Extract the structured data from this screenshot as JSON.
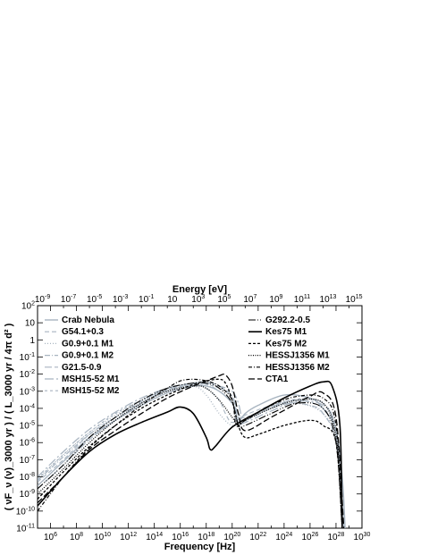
{
  "chart_data": {
    "type": "line",
    "xlabel": "Frequency [Hz]",
    "x2label": "Energy [eV]",
    "ylabel": "( νF_ν (ν)_3000 yr ) / ( L_3000 yr / 4π d² )",
    "x_scale": "log",
    "y_scale": "log",
    "xlim": [
      100000.0,
      1e+30
    ],
    "ylim": [
      1e-11,
      100
    ],
    "x_ticks": [
      "10^6",
      "10^8",
      "10^10",
      "10^12",
      "10^14",
      "10^16",
      "10^18",
      "10^20",
      "10^22",
      "10^24",
      "10^26",
      "10^28",
      "10^30"
    ],
    "x_tick_values": [
      1000000.0,
      100000000.0,
      10000000000.0,
      1000000000000.0,
      100000000000000.0,
      1e+16,
      1e+18,
      1e+20,
      1e+22,
      1e+24,
      1e+26,
      1e+28,
      1e+30
    ],
    "x2_ticks": [
      "10^-9",
      "10^-7",
      "10^-5",
      "10^-3",
      "10^-1",
      "10",
      "10^3",
      "10^5",
      "10^7",
      "10^9",
      "10^11",
      "10^13",
      "10^15"
    ],
    "x2_tick_values_ev": [
      1e-09,
      1e-07,
      1e-05,
      0.001,
      0.1,
      10,
      1000.0,
      100000.0,
      10000000.0,
      1000000000.0,
      100000000000.0,
      10000000000000.0,
      1000000000000000.0
    ],
    "y_ticks": [
      "10^-11",
      "10^-10",
      "10^-9",
      "10^-8",
      "10^-7",
      "10^-6",
      "10^-5",
      "10^-4",
      "10^-3",
      "10^-2",
      "10^-1",
      "1",
      "10",
      "10^2"
    ],
    "y_tick_values": [
      1e-11,
      1e-10,
      1e-09,
      1e-08,
      1e-07,
      1e-06,
      1e-05,
      0.0001,
      0.001,
      0.01,
      0.1,
      1,
      10,
      100
    ],
    "grid": false,
    "series": [
      {
        "name": "Crab Nebula",
        "color": "#a8b4c0",
        "dash": "solid",
        "width": 1.4,
        "points": [
          [
            100000.0,
            3e-09
          ],
          [
            10000000.0,
            8e-08
          ],
          [
            1000000000.0,
            2e-06
          ],
          [
            100000000000.0,
            2e-05
          ],
          [
            10000000000000.0,
            0.00015
          ],
          [
            1000000000000000.0,
            0.0008
          ],
          [
            1e+17,
            0.002
          ],
          [
            1e+18,
            0.002
          ],
          [
            1e+19,
            0.001
          ],
          [
            1e+20,
            0.0002
          ],
          [
            2e+20,
            5e-05
          ],
          [
            3e+20,
            1.5e-05
          ],
          [
            1e+21,
            5e-05
          ],
          [
            1e+22,
            0.00015
          ],
          [
            1e+24,
            0.0006
          ],
          [
            1e+26,
            0.0004
          ],
          [
            1e+27,
            0.0001
          ],
          [
            1e+28,
            5e-06
          ],
          [
            3e+28,
            1e-08
          ],
          [
            5e+28,
            1e-11
          ]
        ]
      },
      {
        "name": "G54.1+0.3",
        "color": "#a8b4c0",
        "dash": "5,3",
        "width": 1.1,
        "points": [
          [
            100000.0,
            5e-09
          ],
          [
            10000000.0,
            1e-07
          ],
          [
            1000000000.0,
            3e-06
          ],
          [
            100000000000.0,
            3e-05
          ],
          [
            10000000000000.0,
            0.0002
          ],
          [
            1000000000000000.0,
            0.001
          ],
          [
            1e+17,
            0.0025
          ],
          [
            1e+18,
            0.0015
          ],
          [
            1e+19,
            0.0003
          ],
          [
            3e+19,
            5e-05
          ],
          [
            1e+20,
            1.5e-05
          ],
          [
            1e+21,
            4e-05
          ],
          [
            1e+23,
            0.00015
          ],
          [
            1e+25,
            0.0003
          ],
          [
            1e+27,
            0.0001
          ],
          [
            1e+28,
            3e-06
          ],
          [
            3e+28,
            1e-11
          ]
        ]
      },
      {
        "name": "G0.9+0.1 M1",
        "color": "#a8b4c0",
        "dash": "1,2",
        "width": 1.3,
        "points": [
          [
            100000.0,
            8e-09
          ],
          [
            10000000.0,
            2e-07
          ],
          [
            1000000000.0,
            4e-06
          ],
          [
            100000000000.0,
            4e-05
          ],
          [
            10000000000000.0,
            0.0003
          ],
          [
            1000000000000000.0,
            0.0012
          ],
          [
            1e+17,
            0.002
          ],
          [
            1e+18,
            0.0006
          ],
          [
            1e+19,
            5e-05
          ],
          [
            1e+20,
            1e-05
          ],
          [
            1e+21,
            2e-05
          ],
          [
            1e+23,
            0.0001
          ],
          [
            1e+25,
            0.0002
          ],
          [
            1e+27,
            5e-05
          ],
          [
            1e+28,
            1e-06
          ],
          [
            4e+28,
            1e-11
          ]
        ]
      },
      {
        "name": "G0.9+0.1 M2",
        "color": "#a8b4c0",
        "dash": "6,2,1,2",
        "width": 1.2,
        "points": [
          [
            100000.0,
            6e-09
          ],
          [
            10000000.0,
            1.5e-07
          ],
          [
            1000000000.0,
            3e-06
          ],
          [
            100000000000.0,
            3e-05
          ],
          [
            10000000000000.0,
            0.00025
          ],
          [
            1000000000000000.0,
            0.0015
          ],
          [
            1e+17,
            0.003
          ],
          [
            1e+18,
            0.0025
          ],
          [
            1e+19,
            0.001
          ],
          [
            1e+20,
            0.0002
          ],
          [
            2e+20,
            2e-05
          ],
          [
            5e+20,
            1.2e-05
          ],
          [
            1e+22,
            6e-05
          ],
          [
            1e+24,
            0.0002
          ],
          [
            1e+26,
            0.00015
          ],
          [
            1e+27,
            5e-05
          ],
          [
            1e+28,
            1e-06
          ],
          [
            4e+28,
            1e-11
          ]
        ]
      },
      {
        "name": "G21.5-0.9",
        "color": "#a8b4c0",
        "dash": "8,3",
        "width": 1.2,
        "points": [
          [
            100000.0,
            2e-09
          ],
          [
            10000000.0,
            5e-08
          ],
          [
            1000000000.0,
            1.5e-06
          ],
          [
            100000000000.0,
            2e-05
          ],
          [
            10000000000000.0,
            0.0002
          ],
          [
            1000000000000000.0,
            0.0012
          ],
          [
            1e+17,
            0.003
          ],
          [
            1e+18,
            0.0035
          ],
          [
            1e+19,
            0.002
          ],
          [
            1e+20,
            0.0005
          ],
          [
            3e+20,
            3e-05
          ],
          [
            1e+21,
            2e-05
          ],
          [
            1e+23,
            0.0001
          ],
          [
            1e+25,
            0.0003
          ],
          [
            1e+27,
            0.0002
          ],
          [
            1e+28,
            3e-06
          ],
          [
            4e+28,
            1e-11
          ]
        ]
      },
      {
        "name": "MSH15-52 M1",
        "color": "#a8b4c0",
        "dash": "10,3,2,3",
        "width": 1.2,
        "points": [
          [
            100000.0,
            1e-08
          ],
          [
            10000000.0,
            3e-07
          ],
          [
            1000000000.0,
            6e-06
          ],
          [
            100000000000.0,
            6e-05
          ],
          [
            10000000000000.0,
            0.0004
          ],
          [
            1000000000000000.0,
            0.0015
          ],
          [
            1e+17,
            0.003
          ],
          [
            1e+18,
            0.003
          ],
          [
            1e+19,
            0.002
          ],
          [
            1e+20,
            0.001
          ],
          [
            3e+20,
            0.0002
          ],
          [
            6e+20,
            2e-05
          ],
          [
            1e+21,
            1.5e-05
          ],
          [
            1e+23,
            7e-05
          ],
          [
            1e+25,
            0.00025
          ],
          [
            1e+27,
            0.00015
          ],
          [
            1e+28,
            5e-06
          ],
          [
            4e+28,
            1e-11
          ]
        ]
      },
      {
        "name": "MSH15-52 M2",
        "color": "#a8b4c0",
        "dash": "3,3",
        "width": 1.2,
        "points": [
          [
            100000.0,
            7e-09
          ],
          [
            10000000.0,
            2e-07
          ],
          [
            1000000000.0,
            4e-06
          ],
          [
            100000000000.0,
            5e-05
          ],
          [
            10000000000000.0,
            0.0003
          ],
          [
            1000000000000000.0,
            0.0012
          ],
          [
            1e+17,
            0.0025
          ],
          [
            1e+18,
            0.0025
          ],
          [
            1e+19,
            0.0015
          ],
          [
            1e+20,
            0.0005
          ],
          [
            3e+20,
            5e-05
          ],
          [
            1e+21,
            3e-05
          ],
          [
            1e+23,
            0.00012
          ],
          [
            1e+25,
            0.00035
          ],
          [
            1e+27,
            0.0002
          ],
          [
            1e+28,
            4e-06
          ],
          [
            4e+28,
            1e-11
          ]
        ]
      },
      {
        "name": "G292.2-0.5",
        "color": "#000000",
        "dash": "8,2,1,2,1,2",
        "width": 1.1,
        "points": [
          [
            100000.0,
            2e-09
          ],
          [
            10000000.0,
            5e-08
          ],
          [
            1000000000.0,
            2e-06
          ],
          [
            100000000000.0,
            3e-05
          ],
          [
            10000000000000.0,
            0.0003
          ],
          [
            1000000000000000.0,
            0.0015
          ],
          [
            1e+17,
            0.003
          ],
          [
            1e+18,
            0.003
          ],
          [
            1e+19,
            0.0015
          ],
          [
            1e+20,
            0.0002
          ],
          [
            3e+20,
            1e-05
          ],
          [
            1e+21,
            1e-05
          ],
          [
            1e+23,
            5e-05
          ],
          [
            1e+25,
            0.0002
          ],
          [
            1e+27,
            0.0001
          ],
          [
            1e+28,
            1e-06
          ],
          [
            3e+28,
            1e-11
          ]
        ]
      },
      {
        "name": "Kes75 M1",
        "color": "#000000",
        "dash": "solid",
        "width": 1.6,
        "points": [
          [
            100000.0,
            2e-10
          ],
          [
            10000000.0,
            1e-08
          ],
          [
            1000000000.0,
            3e-07
          ],
          [
            100000000000.0,
            3e-06
          ],
          [
            10000000000000.0,
            1.5e-05
          ],
          [
            1000000000000000.0,
            6e-05
          ],
          [
            1e+16,
            0.00012
          ],
          [
            1e+17,
            5e-05
          ],
          [
            1e+18,
            2e-06
          ],
          [
            2e+18,
            4e-07
          ],
          [
            5e+18,
            6e-07
          ],
          [
            1e+20,
            8e-06
          ],
          [
            1e+22,
            6e-05
          ],
          [
            1e+24,
            0.0004
          ],
          [
            1e+26,
            0.002
          ],
          [
            1e+27,
            0.0035
          ],
          [
            5e+27,
            0.002
          ],
          [
            2e+28,
            1e-05
          ],
          [
            3e+28,
            1e-11
          ]
        ]
      },
      {
        "name": "Kes75 M2",
        "color": "#000000",
        "dash": "3,2",
        "width": 1.3,
        "points": [
          [
            100000.0,
            5e-10
          ],
          [
            10000000.0,
            2e-08
          ],
          [
            1000000000.0,
            6e-07
          ],
          [
            100000000000.0,
            1e-05
          ],
          [
            10000000000000.0,
            0.0001
          ],
          [
            1000000000000000.0,
            0.0006
          ],
          [
            1e+17,
            0.0025
          ],
          [
            1e+18,
            0.004
          ],
          [
            1e+19,
            0.005
          ],
          [
            3e+19,
            0.003
          ],
          [
            1e+20,
            0.0003
          ],
          [
            3e+20,
            1e-05
          ],
          [
            1e+21,
            2e-06
          ],
          [
            1e+22,
            3e-06
          ],
          [
            1e+24,
            1e-05
          ],
          [
            1e+26,
            2e-05
          ],
          [
            1e+27,
            1e-05
          ],
          [
            1e+28,
            1e-06
          ],
          [
            3e+28,
            1e-11
          ]
        ]
      },
      {
        "name": "HESSJ1356 M1",
        "color": "#000000",
        "dash": "1,1.5",
        "width": 1.3,
        "points": [
          [
            100000.0,
            1e-09
          ],
          [
            10000000.0,
            3e-08
          ],
          [
            1000000000.0,
            1e-06
          ],
          [
            100000000000.0,
            2e-05
          ],
          [
            10000000000000.0,
            0.0002
          ],
          [
            1000000000000000.0,
            0.001
          ],
          [
            1e+17,
            0.002
          ],
          [
            1e+18,
            0.0015
          ],
          [
            1e+19,
            0.0003
          ],
          [
            1e+20,
            3e-05
          ],
          [
            3e+20,
            1e-05
          ],
          [
            1e+21,
            2e-05
          ],
          [
            1e+23,
            0.0001
          ],
          [
            1e+25,
            0.0003
          ],
          [
            1e+27,
            0.0002
          ],
          [
            1e+28,
            2e-06
          ],
          [
            3e+28,
            1e-11
          ]
        ]
      },
      {
        "name": "HESSJ1356 M2",
        "color": "#000000",
        "dash": "4,2,1,2",
        "width": 1.2,
        "points": [
          [
            100000.0,
            1e-10
          ],
          [
            10000000.0,
            1e-08
          ],
          [
            1000000000.0,
            5e-07
          ],
          [
            100000000000.0,
            1e-05
          ],
          [
            10000000000000.0,
            0.00015
          ],
          [
            1000000000000000.0,
            0.0015
          ],
          [
            1e+16,
            0.004
          ],
          [
            1e+17,
            0.005
          ],
          [
            1e+18,
            0.004
          ],
          [
            1e+19,
            0.002
          ],
          [
            1e+20,
            0.0003
          ],
          [
            2e+20,
            1e-05
          ],
          [
            1e+21,
            2e-05
          ],
          [
            1e+23,
            0.00015
          ],
          [
            1e+25,
            0.0005
          ],
          [
            1e+27,
            0.0004
          ],
          [
            1e+28,
            1e-05
          ],
          [
            3e+28,
            1e-11
          ]
        ]
      },
      {
        "name": "CTA1",
        "color": "#000000",
        "dash": "7,3",
        "width": 1.3,
        "points": [
          [
            100000.0,
            3e-10
          ],
          [
            10000000.0,
            1e-08
          ],
          [
            1000000000.0,
            4e-07
          ],
          [
            100000000000.0,
            5e-06
          ],
          [
            10000000000000.0,
            5e-05
          ],
          [
            1000000000000000.0,
            0.0004
          ],
          [
            1e+17,
            0.002
          ],
          [
            1e+18,
            0.004
          ],
          [
            1e+19,
            0.008
          ],
          [
            3e+19,
            0.009
          ],
          [
            1e+20,
            0.002
          ],
          [
            3e+20,
            5e-05
          ],
          [
            1e+21,
            5e-06
          ],
          [
            1e+23,
            3e-05
          ],
          [
            1e+25,
            0.0002
          ],
          [
            1e+26,
            0.0005
          ],
          [
            1e+27,
            0.0008
          ],
          [
            1e+28,
            3e-05
          ],
          [
            4e+28,
            1e-11
          ]
        ]
      }
    ],
    "legend_position": "top"
  }
}
